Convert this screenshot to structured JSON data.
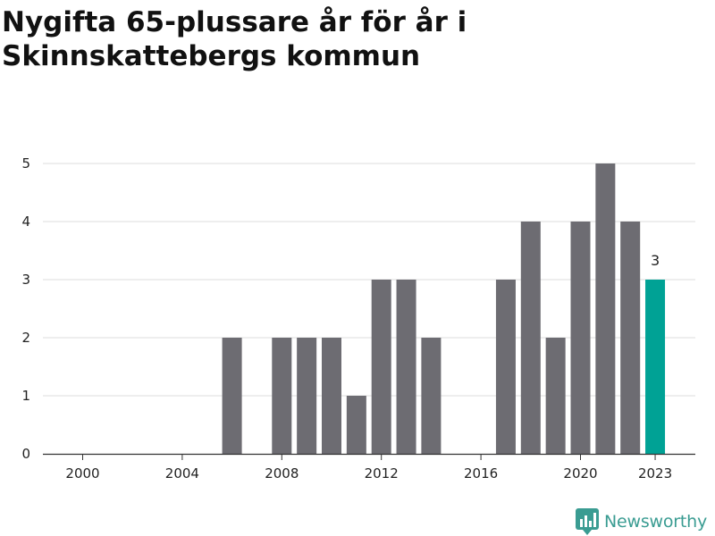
{
  "title": "Nygifta 65-plussare år för år i Skinnskattebergs kommun",
  "logo": {
    "text": "Newsworthy",
    "icon": "newsworthy-chart-icon"
  },
  "colors": {
    "bar": "#6d6c72",
    "highlight": "#00a295",
    "grid": "#dcdcdc",
    "brand": "#3a9c92"
  },
  "chart_data": {
    "type": "bar",
    "x": [
      2000,
      2001,
      2002,
      2003,
      2004,
      2005,
      2006,
      2007,
      2008,
      2009,
      2010,
      2011,
      2012,
      2013,
      2014,
      2015,
      2016,
      2017,
      2018,
      2019,
      2020,
      2021,
      2022,
      2023
    ],
    "values": [
      0,
      0,
      0,
      0,
      0,
      0,
      2,
      0,
      2,
      2,
      2,
      1,
      3,
      3,
      2,
      0,
      0,
      3,
      4,
      2,
      4,
      5,
      4,
      3
    ],
    "xticks": [
      2000,
      2004,
      2008,
      2012,
      2016,
      2020,
      2023
    ],
    "yticks": [
      0,
      1,
      2,
      3,
      4,
      5
    ],
    "ylim": [
      0,
      5
    ],
    "highlight_x": 2023,
    "highlight_label": "3",
    "grid": true,
    "title": "Nygifta 65-plussare år för år i Skinnskattebergs kommun",
    "xlabel": "",
    "ylabel": ""
  }
}
